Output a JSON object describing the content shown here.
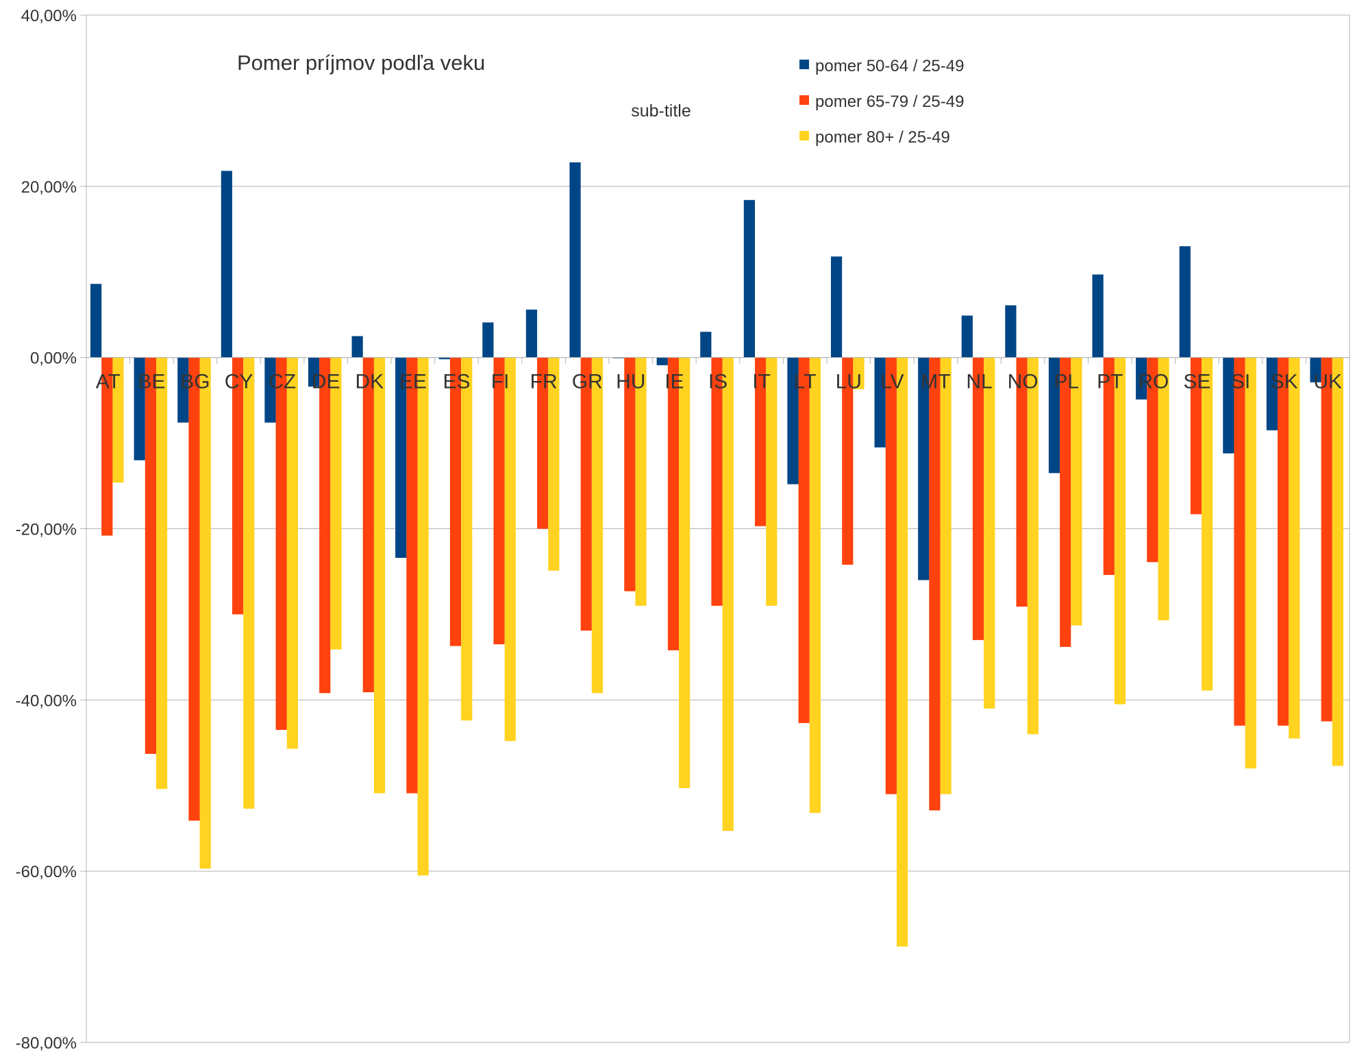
{
  "chart_data": {
    "type": "bar",
    "title": "Pomer príjmov podľa veku",
    "subtitle": "sub-title",
    "xlabel": "",
    "ylabel": "",
    "ylim": [
      -0.8,
      0.4
    ],
    "y_ticks": [
      "40,00%",
      "20,00%",
      "0,00%",
      "-20,00%",
      "-40,00%",
      "-60,00%",
      "-80,00%"
    ],
    "y_tick_values": [
      0.4,
      0.2,
      0.0,
      -0.2,
      -0.4,
      -0.6,
      -0.8
    ],
    "grid": true,
    "legend_position": "top-right",
    "categories": [
      "AT",
      "BE",
      "BG",
      "CY",
      "CZ",
      "DE",
      "DK",
      "EE",
      "ES",
      "FI",
      "FR",
      "GR",
      "HU",
      "IE",
      "IS",
      "IT",
      "LT",
      "LU",
      "LV",
      "MT",
      "NL",
      "NO",
      "PL",
      "PT",
      "RO",
      "SE",
      "SI",
      "SK",
      "UK"
    ],
    "series": [
      {
        "name": "pomer 50-64 / 25-49",
        "color": "#004586",
        "values": [
          0.086,
          -0.12,
          -0.076,
          0.218,
          -0.076,
          -0.034,
          0.025,
          -0.234,
          -0.002,
          0.041,
          0.056,
          0.228,
          0.0,
          -0.009,
          0.03,
          0.184,
          -0.148,
          0.118,
          -0.105,
          -0.26,
          0.049,
          0.061,
          -0.135,
          0.097,
          -0.049,
          0.13,
          -0.112,
          -0.085,
          -0.029
        ]
      },
      {
        "name": "pomer 65-79 / 25-49",
        "color": "#ff420e",
        "values": [
          -0.208,
          -0.463,
          -0.541,
          -0.3,
          -0.435,
          -0.392,
          -0.391,
          -0.509,
          -0.337,
          -0.335,
          -0.2,
          -0.319,
          -0.273,
          -0.342,
          -0.29,
          -0.197,
          -0.427,
          -0.242,
          -0.51,
          -0.529,
          -0.33,
          -0.291,
          -0.338,
          -0.254,
          -0.239,
          -0.183,
          -0.43,
          -0.43,
          -0.425
        ]
      },
      {
        "name": "pomer 80+ / 25-49",
        "color": "#ffd320",
        "values": [
          -0.146,
          -0.504,
          -0.597,
          -0.527,
          -0.457,
          -0.341,
          -0.509,
          -0.605,
          -0.424,
          -0.448,
          -0.249,
          -0.392,
          -0.29,
          -0.503,
          -0.553,
          -0.29,
          -0.532,
          -0.037,
          -0.688,
          -0.51,
          -0.41,
          -0.44,
          -0.313,
          -0.405,
          -0.307,
          -0.389,
          -0.48,
          -0.445,
          -0.477
        ]
      }
    ]
  }
}
